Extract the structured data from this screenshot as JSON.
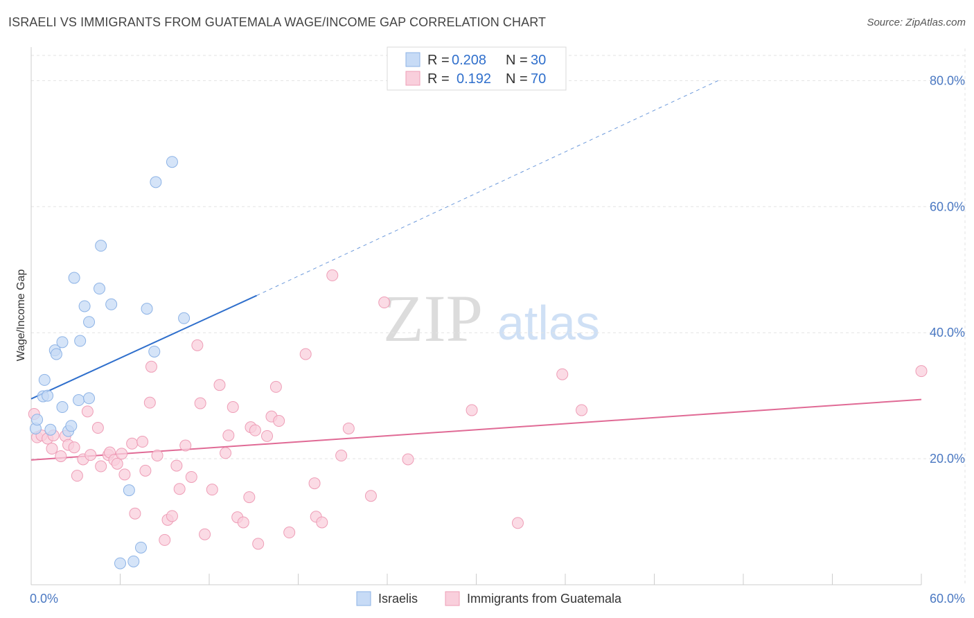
{
  "title": "ISRAELI VS IMMIGRANTS FROM GUATEMALA WAGE/INCOME GAP CORRELATION CHART",
  "source": "Source: ZipAtlas.com",
  "colors": {
    "israelis_fill": "#c7dbf6",
    "israelis_stroke": "#8db3e6",
    "israelis_line": "#2f6fcc",
    "guatemala_fill": "#f9cfdc",
    "guatemala_stroke": "#ee9db6",
    "guatemala_line": "#e06a95",
    "grid": "#e3e3e3",
    "tick_text": "#4a78c2"
  },
  "legend": {
    "r_label": "R =",
    "n_label": "N =",
    "israelis_r": "0.208",
    "israelis_n": "30",
    "guatemala_r": "0.192",
    "guatemala_n": "70"
  },
  "watermark": {
    "zip": "ZIP",
    "atlas": "atlas"
  },
  "chart_data": {
    "type": "scatter",
    "xlabel": "",
    "ylabel": "Wage/Income Gap",
    "xlim": [
      0,
      60
    ],
    "ylim": [
      0,
      84
    ],
    "x_tick_labels": [
      {
        "value": 0,
        "label": "0.0%"
      },
      {
        "value": 60,
        "label": "60.0%"
      }
    ],
    "y_tick_labels": [
      {
        "value": 20,
        "label": "20.0%"
      },
      {
        "value": 40,
        "label": "40.0%"
      },
      {
        "value": 60,
        "label": "60.0%"
      },
      {
        "value": 80,
        "label": "80.0%"
      }
    ],
    "series": [
      {
        "name": "Israelis",
        "points": [
          [
            0.3,
            24.8
          ],
          [
            0.4,
            26.2
          ],
          [
            0.8,
            29.9
          ],
          [
            0.9,
            32.5
          ],
          [
            1.1,
            30.0
          ],
          [
            1.3,
            24.6
          ],
          [
            1.6,
            37.2
          ],
          [
            1.7,
            36.6
          ],
          [
            2.1,
            28.2
          ],
          [
            2.1,
            38.5
          ],
          [
            2.5,
            24.4
          ],
          [
            2.7,
            25.2
          ],
          [
            2.9,
            48.7
          ],
          [
            3.2,
            29.3
          ],
          [
            3.3,
            38.7
          ],
          [
            3.6,
            44.2
          ],
          [
            3.9,
            41.7
          ],
          [
            3.9,
            29.6
          ],
          [
            4.6,
            47.0
          ],
          [
            4.7,
            53.8
          ],
          [
            5.4,
            44.5
          ],
          [
            6.0,
            3.4
          ],
          [
            6.6,
            15.0
          ],
          [
            6.9,
            3.7
          ],
          [
            7.4,
            5.9
          ],
          [
            7.8,
            43.8
          ],
          [
            8.3,
            37.0
          ],
          [
            8.4,
            63.9
          ],
          [
            9.5,
            67.1
          ],
          [
            10.3,
            42.3
          ]
        ],
        "trend": {
          "x": [
            0,
            15.2
          ],
          "y": [
            29.5,
            45.9
          ],
          "dashed_to": [
            46.3,
            80.0
          ]
        }
      },
      {
        "name": "Immigrants from Guatemala",
        "points": [
          [
            0.2,
            27.1
          ],
          [
            0.4,
            23.4
          ],
          [
            0.7,
            23.7
          ],
          [
            1.1,
            23.2
          ],
          [
            1.4,
            21.6
          ],
          [
            1.5,
            23.7
          ],
          [
            2.0,
            20.4
          ],
          [
            2.3,
            23.6
          ],
          [
            2.5,
            22.2
          ],
          [
            2.9,
            21.8
          ],
          [
            3.1,
            17.3
          ],
          [
            3.5,
            19.9
          ],
          [
            3.8,
            27.5
          ],
          [
            4.0,
            20.6
          ],
          [
            4.5,
            24.9
          ],
          [
            4.7,
            18.8
          ],
          [
            5.2,
            20.6
          ],
          [
            5.3,
            21.0
          ],
          [
            5.6,
            19.8
          ],
          [
            5.8,
            19.2
          ],
          [
            6.1,
            20.8
          ],
          [
            6.3,
            17.5
          ],
          [
            6.8,
            22.4
          ],
          [
            7.0,
            11.3
          ],
          [
            7.5,
            22.7
          ],
          [
            7.7,
            18.1
          ],
          [
            8.0,
            28.9
          ],
          [
            8.1,
            34.6
          ],
          [
            8.5,
            20.5
          ],
          [
            9.0,
            7.1
          ],
          [
            9.2,
            10.3
          ],
          [
            9.5,
            10.9
          ],
          [
            9.8,
            18.9
          ],
          [
            10.0,
            15.2
          ],
          [
            10.4,
            22.1
          ],
          [
            10.8,
            17.1
          ],
          [
            11.2,
            38.0
          ],
          [
            11.4,
            28.8
          ],
          [
            11.7,
            8.0
          ],
          [
            12.2,
            15.1
          ],
          [
            12.7,
            31.7
          ],
          [
            13.1,
            20.9
          ],
          [
            13.3,
            23.7
          ],
          [
            13.6,
            28.2
          ],
          [
            13.9,
            10.7
          ],
          [
            14.3,
            9.9
          ],
          [
            14.7,
            13.9
          ],
          [
            14.8,
            25.0
          ],
          [
            15.1,
            24.5
          ],
          [
            15.3,
            6.5
          ],
          [
            15.9,
            23.6
          ],
          [
            16.2,
            26.7
          ],
          [
            16.5,
            31.4
          ],
          [
            16.7,
            26.0
          ],
          [
            17.4,
            8.3
          ],
          [
            18.5,
            36.6
          ],
          [
            19.1,
            16.1
          ],
          [
            19.2,
            10.8
          ],
          [
            19.6,
            9.9
          ],
          [
            20.3,
            49.1
          ],
          [
            20.9,
            20.5
          ],
          [
            21.4,
            24.8
          ],
          [
            22.9,
            14.1
          ],
          [
            23.8,
            44.8
          ],
          [
            25.4,
            19.9
          ],
          [
            29.7,
            27.7
          ],
          [
            32.8,
            9.8
          ],
          [
            35.8,
            33.4
          ],
          [
            37.1,
            27.7
          ],
          [
            60.0,
            33.9
          ]
        ],
        "trend": {
          "x": [
            0,
            60
          ],
          "y": [
            19.8,
            29.4
          ]
        }
      }
    ],
    "legend_position": "top-center",
    "grid": true
  }
}
